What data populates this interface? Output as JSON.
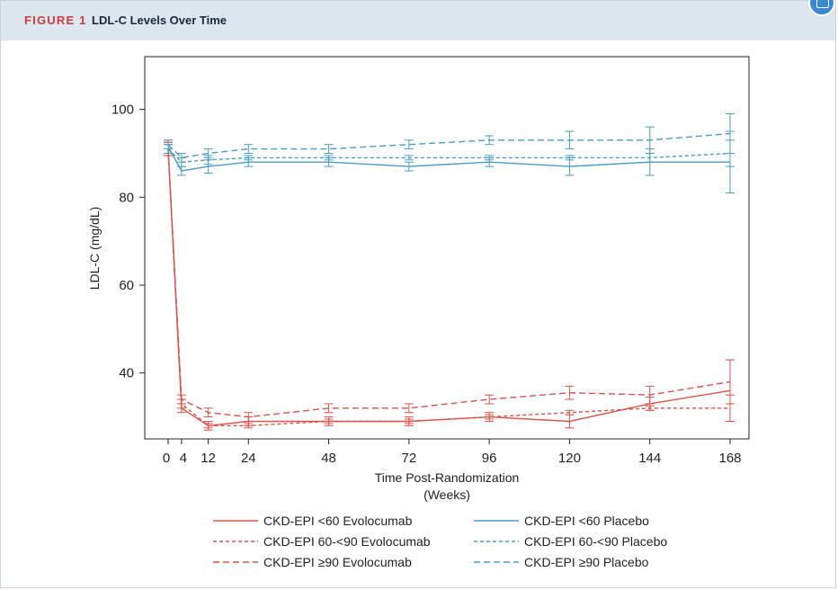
{
  "figure": {
    "label": "FIGURE 1",
    "title": "LDL-C Levels Over Time"
  },
  "chart_data": {
    "type": "line",
    "xlabel_line1": "Time Post-Randomization",
    "xlabel_line2": "(Weeks)",
    "ylabel": "LDL-C (mg/dL)",
    "xlim": [
      0,
      168
    ],
    "ylim": [
      25,
      112
    ],
    "xticks": [
      0,
      4,
      12,
      24,
      48,
      72,
      96,
      120,
      144,
      168
    ],
    "yticks": [
      40,
      60,
      80,
      100
    ],
    "grid": false,
    "legend_placement": "bottom",
    "x": [
      0,
      4,
      12,
      24,
      48,
      72,
      96,
      120,
      144,
      168
    ],
    "colors": {
      "evolocumab": "#d9534a",
      "placebo": "#4a9cc4"
    },
    "series": [
      {
        "name": "CKD-EPI <60 Evolocumab",
        "group": "evolocumab",
        "dash": "solid",
        "values": [
          91,
          32,
          28,
          29,
          29,
          29,
          30,
          29,
          33,
          36
        ],
        "errors": [
          1.5,
          1,
          1,
          1,
          1,
          1,
          1,
          1.5,
          1.5,
          7
        ]
      },
      {
        "name": "CKD-EPI 60-<90 Evolocumab",
        "group": "evolocumab",
        "dash": "short",
        "values": [
          91,
          33,
          28,
          28,
          29,
          29,
          30,
          31,
          32,
          32
        ],
        "errors": [
          1,
          1,
          0.5,
          0.5,
          0.5,
          0.5,
          0.5,
          0.5,
          0.5,
          3
        ]
      },
      {
        "name": "CKD-EPI ≥90 Evolocumab",
        "group": "evolocumab",
        "dash": "long",
        "values": [
          91,
          34,
          31,
          30,
          32,
          32,
          34,
          35.5,
          35,
          38
        ],
        "errors": [
          1.5,
          1,
          1,
          1,
          1,
          1,
          1,
          1.5,
          2,
          5
        ]
      },
      {
        "name": "CKD-EPI <60 Placebo",
        "group": "placebo",
        "dash": "solid",
        "values": [
          91.5,
          86,
          87,
          88,
          88,
          87,
          88,
          87,
          88,
          88
        ],
        "errors": [
          1.5,
          1,
          1.5,
          1,
          1,
          1,
          1,
          2,
          3,
          7
        ]
      },
      {
        "name": "CKD-EPI 60-<90 Placebo",
        "group": "placebo",
        "dash": "short",
        "values": [
          91,
          88,
          88.5,
          89,
          89,
          89,
          89,
          89,
          89,
          90
        ],
        "errors": [
          1,
          1,
          1,
          0.5,
          0.5,
          0.5,
          0.5,
          0.5,
          1,
          3
        ]
      },
      {
        "name": "CKD-EPI ≥90 Placebo",
        "group": "placebo",
        "dash": "long",
        "values": [
          92,
          89,
          90,
          91,
          91,
          92,
          93,
          93,
          93,
          94.5
        ],
        "errors": [
          1,
          1,
          1,
          1,
          1,
          1,
          1,
          2,
          3,
          4.5
        ]
      }
    ]
  }
}
